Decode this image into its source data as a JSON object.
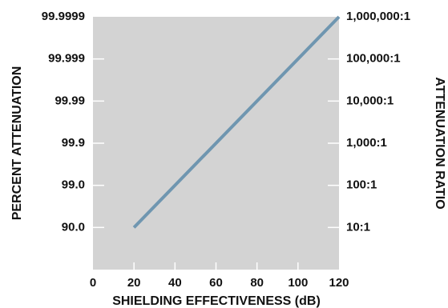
{
  "chart_data": {
    "type": "line",
    "title": "",
    "xlabel": "SHIELDING EFFECTIVENESS (dB)",
    "ylabel_left": "PERCENT ATTENUATION",
    "ylabel_right": "ATTENUATION RATIO",
    "xlim": [
      0,
      120
    ],
    "ylim_db": [
      0,
      120
    ],
    "x_ticks": [
      "0",
      "20",
      "40",
      "60",
      "80",
      "100",
      "120"
    ],
    "left_ticks": [
      {
        "db": 20,
        "label": "90.0"
      },
      {
        "db": 40,
        "label": "99.0"
      },
      {
        "db": 60,
        "label": "99.9"
      },
      {
        "db": 80,
        "label": "99.99"
      },
      {
        "db": 100,
        "label": "99.999"
      },
      {
        "db": 120,
        "label": "99.9999"
      }
    ],
    "right_ticks": [
      {
        "db": 20,
        "label": "10:1"
      },
      {
        "db": 40,
        "label": "100:1"
      },
      {
        "db": 60,
        "label": "1,000:1"
      },
      {
        "db": 80,
        "label": "10,000:1"
      },
      {
        "db": 100,
        "label": "100,000:1"
      },
      {
        "db": 120,
        "label": "1,000,000:1"
      }
    ],
    "series": [
      {
        "x": [
          20,
          120
        ],
        "y": [
          20,
          120
        ]
      }
    ],
    "grid": false,
    "colors": {
      "plot_background": "#d3d3d3",
      "line": "#6f96b0",
      "tick_mark": "#ffffff"
    }
  }
}
